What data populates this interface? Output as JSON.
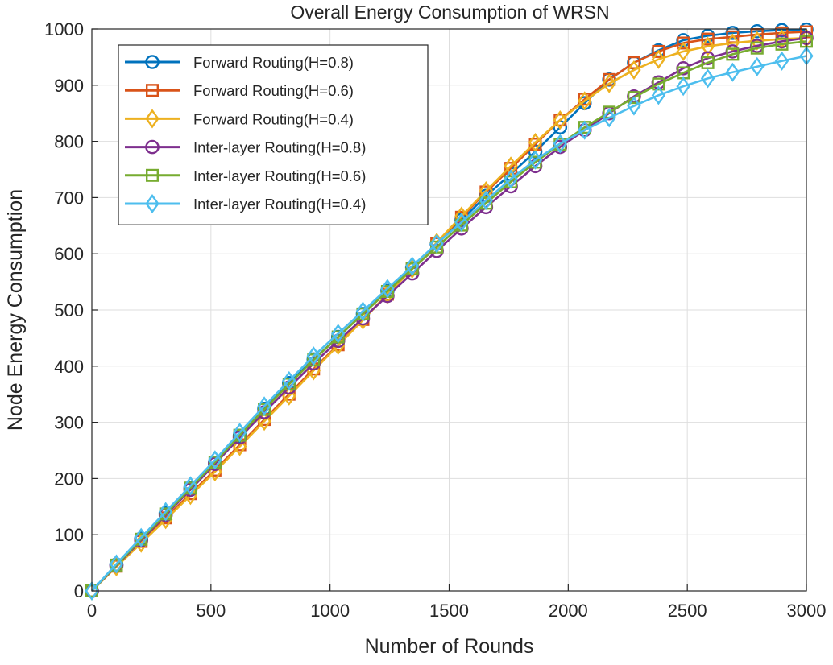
{
  "chart_data": {
    "type": "line",
    "title": "Overall Energy Consumption of WRSN",
    "xlabel": "Number of Rounds",
    "ylabel": "Node Energy Consumption",
    "xlim": [
      0,
      3000
    ],
    "ylim": [
      0,
      1000
    ],
    "xticks": [
      0,
      500,
      1000,
      1500,
      2000,
      2500,
      3000
    ],
    "yticks": [
      0,
      100,
      200,
      300,
      400,
      500,
      600,
      700,
      800,
      900,
      1000
    ],
    "grid": true,
    "legend_position": "top-left",
    "x": [
      0,
      103,
      207,
      310,
      414,
      517,
      621,
      724,
      828,
      931,
      1034,
      1138,
      1241,
      1345,
      1448,
      1552,
      1655,
      1759,
      1862,
      1966,
      2069,
      2172,
      2276,
      2379,
      2483,
      2586,
      2690,
      2793,
      2897,
      3000
    ],
    "series": [
      {
        "name": "Forward Routing(H=0.8)",
        "color": "#0072BD",
        "marker": "circle",
        "values": [
          0,
          47,
          93,
          138,
          183,
          228,
          276,
          324,
          370,
          412,
          452,
          493,
          534,
          575,
          618,
          660,
          703,
          742,
          782,
          825,
          868,
          910,
          940,
          962,
          980,
          988,
          993,
          996,
          998,
          999
        ]
      },
      {
        "name": "Forward Routing(H=0.6)",
        "color": "#D95319",
        "marker": "square",
        "values": [
          0,
          44,
          88,
          130,
          173,
          215,
          260,
          305,
          350,
          395,
          438,
          483,
          528,
          573,
          618,
          665,
          710,
          752,
          795,
          838,
          875,
          910,
          940,
          960,
          975,
          982,
          986,
          990,
          993,
          995
        ]
      },
      {
        "name": "Forward Routing(H=0.4)",
        "color": "#EDB120",
        "marker": "diamond",
        "values": [
          0,
          43,
          85,
          127,
          170,
          212,
          257,
          302,
          347,
          392,
          437,
          482,
          528,
          573,
          620,
          667,
          712,
          756,
          798,
          838,
          872,
          903,
          927,
          946,
          960,
          969,
          975,
          979,
          982,
          984
        ]
      },
      {
        "name": "Inter-layer Routing(H=0.8)",
        "color": "#7E2F8E",
        "marker": "circle",
        "values": [
          0,
          45,
          90,
          135,
          180,
          226,
          273,
          318,
          362,
          405,
          445,
          485,
          525,
          565,
          605,
          645,
          683,
          720,
          756,
          790,
          820,
          850,
          880,
          905,
          930,
          948,
          960,
          970,
          978,
          984
        ]
      },
      {
        "name": "Inter-layer Routing(H=0.6)",
        "color": "#77AC30",
        "marker": "square",
        "values": [
          0,
          46,
          92,
          137,
          183,
          229,
          277,
          323,
          368,
          411,
          452,
          493,
          533,
          573,
          612,
          651,
          690,
          728,
          763,
          795,
          825,
          852,
          878,
          902,
          922,
          940,
          955,
          966,
          973,
          978
        ]
      },
      {
        "name": "Inter-layer Routing(H=0.4)",
        "color": "#4DBEEE",
        "marker": "diamond",
        "values": [
          0,
          48,
          95,
          141,
          187,
          233,
          282,
          329,
          374,
          418,
          458,
          498,
          538,
          578,
          618,
          656,
          695,
          733,
          767,
          796,
          820,
          842,
          863,
          882,
          898,
          912,
          923,
          933,
          943,
          952
        ]
      }
    ]
  }
}
